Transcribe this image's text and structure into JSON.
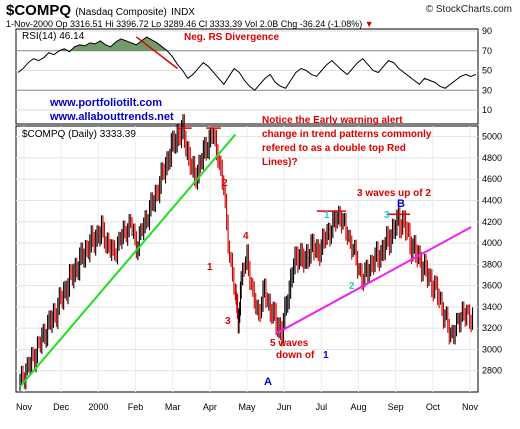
{
  "header": {
    "symbol": "$COMPQ",
    "name": "(Nasdaq Composite)",
    "exchange": "INDX",
    "source": "© StockCharts.com",
    "quote": "1-Nov-2000  Op 3316.51  Hi 3396.72  Lo 3289.46  Cl 3333.39  Vol 2.0B  Chg -36.24 (-1.08%)",
    "quote_trend": "▼"
  },
  "rsi_panel": {
    "label": "RSI(14) 46.14",
    "ticks": [
      "90",
      "70",
      "50",
      "30",
      "10"
    ],
    "tick_values": [
      90,
      70,
      50,
      30,
      10
    ],
    "divergence_label": "Neg. RS Divergence",
    "links": [
      "www.portfoliotilt.com",
      "www.allabouttrends.net"
    ],
    "values": [
      48,
      52,
      58,
      62,
      60,
      63,
      68,
      66,
      70,
      72,
      69,
      74,
      76,
      75,
      78,
      77,
      80,
      76,
      74,
      79,
      82,
      80,
      78,
      76,
      80,
      84,
      81,
      78,
      74,
      70,
      64,
      56,
      50,
      42,
      46,
      52,
      58,
      54,
      48,
      42,
      36,
      44,
      52,
      48,
      40,
      34,
      30,
      36,
      42,
      46,
      38,
      34,
      32,
      40,
      48,
      52,
      50,
      46,
      44,
      50,
      56,
      60,
      55,
      50,
      46,
      52,
      58,
      62,
      56,
      50,
      48,
      54,
      60,
      58,
      52,
      48,
      44,
      40,
      36,
      42,
      40,
      38,
      34,
      32,
      36,
      40,
      44,
      46,
      44,
      46
    ],
    "colors": {
      "line": "#000000",
      "overbought_fill": "#5a8a50",
      "divergence": "#dd0000",
      "links": "#0000cc"
    }
  },
  "price_panel": {
    "label": "$COMPQ (Daily) 3333.39",
    "annotation_text": [
      "Notice the Early warning alert",
      "change in trend patterns commonly",
      "refered to as a double top Red",
      "Lines)?"
    ],
    "wave_labels": [
      {
        "text": "1",
        "color": "#dd0000"
      },
      {
        "text": "2",
        "color": "#dd0000"
      },
      {
        "text": "3",
        "color": "#dd0000"
      },
      {
        "text": "4",
        "color": "#dd0000"
      },
      {
        "text": "5 waves",
        "color": "#dd0000"
      },
      {
        "text": "down of",
        "color": "#dd0000"
      },
      {
        "text": "1",
        "color": "#0000cc"
      },
      {
        "text": "A",
        "color": "#0000cc"
      },
      {
        "text": "1",
        "color": "#22cccc"
      },
      {
        "text": "2",
        "color": "#22cccc"
      },
      {
        "text": "3",
        "color": "#22cccc"
      },
      {
        "text": "B",
        "color": "#0000cc"
      },
      {
        "text": "3 waves up of 2",
        "color": "#dd0000"
      }
    ],
    "colors": {
      "up_trendline": "#22dd22",
      "up_trendline2": "#ee22ee",
      "tops": "#dd0000",
      "up_bar": "#000000",
      "down_bar": "#cc0000"
    }
  },
  "chart_data": {
    "type": "line",
    "title": "$COMPQ (Nasdaq Composite) INDX",
    "xlabel": "",
    "ylabel": "",
    "x_tick_labels": [
      "Nov",
      "Dec",
      "2000",
      "Feb",
      "Mar",
      "Apr",
      "May",
      "Jun",
      "Jul",
      "Aug",
      "Sep",
      "Oct",
      "Nov"
    ],
    "y_tick_labels": [
      "5000",
      "4800",
      "4600",
      "4400",
      "4200",
      "4000",
      "3800",
      "3600",
      "3400",
      "3200",
      "3000",
      "2800"
    ],
    "ylim": [
      2600,
      5100
    ],
    "grid": true,
    "series": [
      {
        "name": "$COMPQ (Daily)",
        "x": [
          "Nov-99",
          "Dec-99",
          "Jan-00",
          "Feb-00",
          "Mar-00",
          "Apr-00",
          "May-00",
          "Jun-00",
          "Jul-00",
          "Aug-00",
          "Sep-00",
          "Oct-00",
          "Nov-00"
        ],
        "points": [
          [
            0,
            2700
          ],
          [
            4,
            2820
          ],
          [
            8,
            2900
          ],
          [
            12,
            3010
          ],
          [
            16,
            3130
          ],
          [
            20,
            3240
          ],
          [
            24,
            3330
          ],
          [
            28,
            3460
          ],
          [
            32,
            3580
          ],
          [
            36,
            3700
          ],
          [
            40,
            3790
          ],
          [
            44,
            3900
          ],
          [
            48,
            3980
          ],
          [
            52,
            4050
          ],
          [
            56,
            4110
          ],
          [
            60,
            4000
          ],
          [
            64,
            3900
          ],
          [
            68,
            4020
          ],
          [
            72,
            4120
          ],
          [
            76,
            4200
          ],
          [
            80,
            3980
          ],
          [
            84,
            4130
          ],
          [
            88,
            4280
          ],
          [
            92,
            4400
          ],
          [
            96,
            4560
          ],
          [
            100,
            4720
          ],
          [
            104,
            4880
          ],
          [
            108,
            5000
          ],
          [
            112,
            5040
          ],
          [
            116,
            4800
          ],
          [
            120,
            4600
          ],
          [
            124,
            4750
          ],
          [
            128,
            4900
          ],
          [
            132,
            5020
          ],
          [
            136,
            4840
          ],
          [
            140,
            4500
          ],
          [
            144,
            3900
          ],
          [
            148,
            3500
          ],
          [
            150,
            3290
          ],
          [
            152,
            3650
          ],
          [
            156,
            3900
          ],
          [
            160,
            3500
          ],
          [
            164,
            3350
          ],
          [
            168,
            3550
          ],
          [
            172,
            3380
          ],
          [
            176,
            3250
          ],
          [
            180,
            3150
          ],
          [
            184,
            3500
          ],
          [
            188,
            3780
          ],
          [
            192,
            3900
          ],
          [
            196,
            3800
          ],
          [
            200,
            3980
          ],
          [
            204,
            3900
          ],
          [
            208,
            4000
          ],
          [
            212,
            4100
          ],
          [
            216,
            4200
          ],
          [
            220,
            4280
          ],
          [
            224,
            4120
          ],
          [
            228,
            4000
          ],
          [
            232,
            3800
          ],
          [
            236,
            3660
          ],
          [
            240,
            3780
          ],
          [
            244,
            3850
          ],
          [
            248,
            3900
          ],
          [
            252,
            4000
          ],
          [
            256,
            4100
          ],
          [
            260,
            4200
          ],
          [
            264,
            4180
          ],
          [
            268,
            4000
          ],
          [
            272,
            3900
          ],
          [
            276,
            3800
          ],
          [
            280,
            3700
          ],
          [
            284,
            3600
          ],
          [
            288,
            3500
          ],
          [
            292,
            3300
          ],
          [
            296,
            3150
          ],
          [
            300,
            3220
          ],
          [
            304,
            3380
          ],
          [
            308,
            3300
          ],
          [
            312,
            3330
          ]
        ]
      }
    ]
  }
}
